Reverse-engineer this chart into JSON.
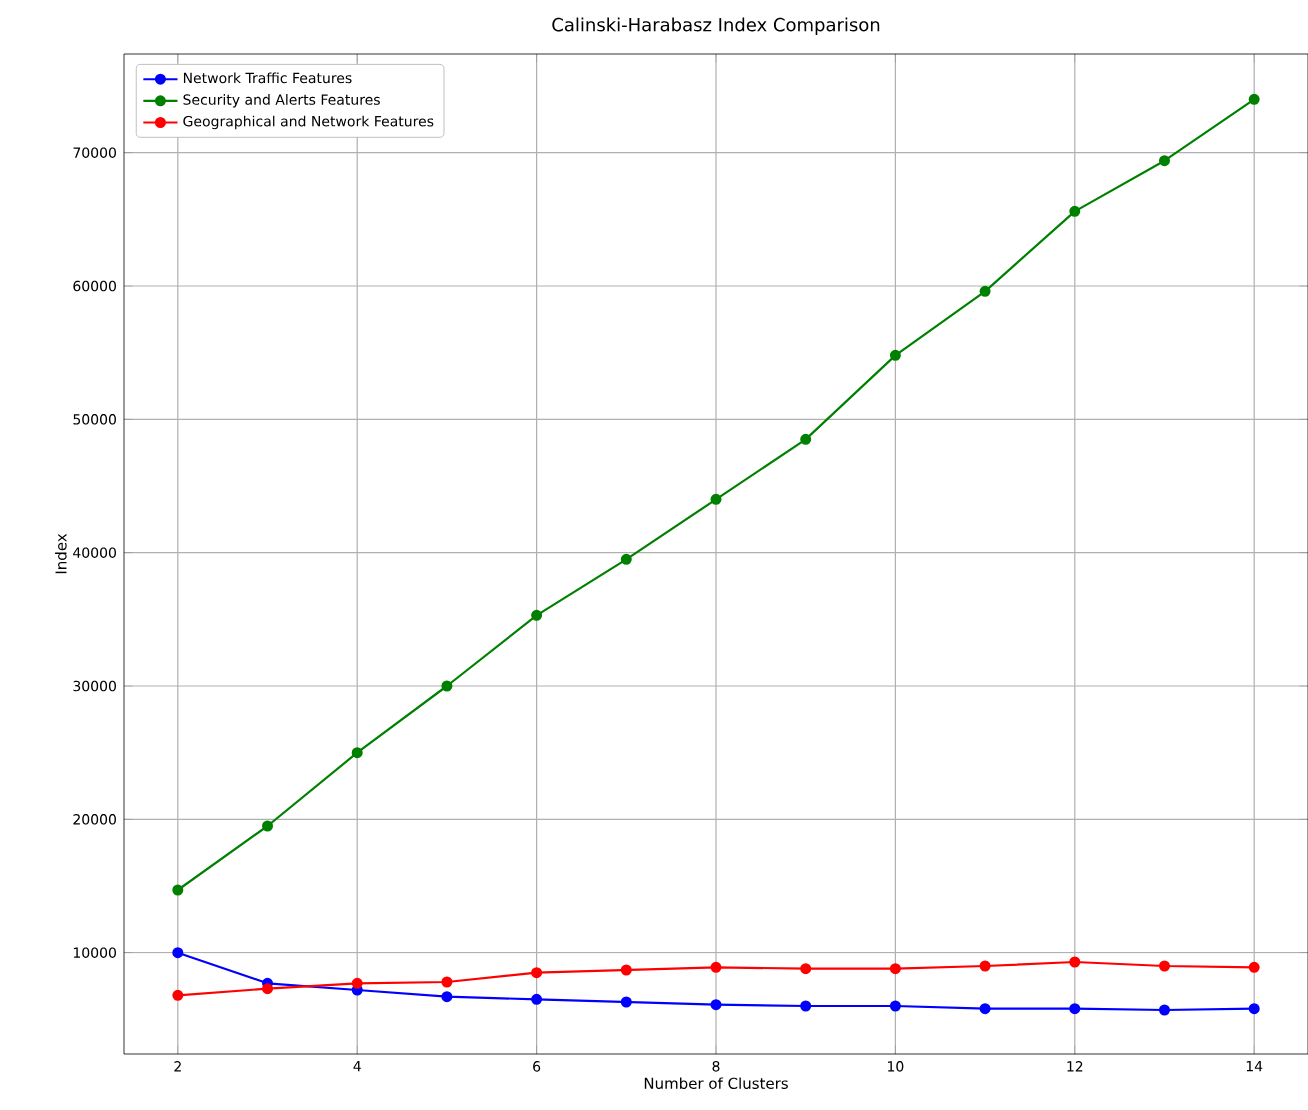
{
  "chart_data": {
    "type": "line",
    "title": "Calinski-Harabasz Index Comparison",
    "xlabel": "Number of Clusters",
    "ylabel": "Index",
    "x": [
      2,
      3,
      4,
      5,
      6,
      7,
      8,
      9,
      10,
      11,
      12,
      13,
      14
    ],
    "series": [
      {
        "name": "Network Traffic Features",
        "color": "#0000ff",
        "values": [
          10000,
          7700,
          7200,
          6700,
          6500,
          6300,
          6100,
          6000,
          6000,
          5800,
          5800,
          5700,
          5800
        ]
      },
      {
        "name": "Security and Alerts Features",
        "color": "#008000",
        "values": [
          14700,
          19500,
          25000,
          30000,
          35300,
          39500,
          44000,
          48500,
          54800,
          59600,
          65600,
          69400,
          74000
        ]
      },
      {
        "name": "Geographical and Network Features",
        "color": "#ff0000",
        "values": [
          6800,
          7300,
          7700,
          7800,
          8500,
          8700,
          8900,
          8800,
          8800,
          9000,
          9300,
          9000,
          8900
        ]
      }
    ],
    "xlim": [
      1.4,
      14.6
    ],
    "ylim": [
      2400,
      77400
    ],
    "xticks": [
      2,
      4,
      6,
      8,
      10,
      12,
      14
    ],
    "yticks": [
      10000,
      20000,
      30000,
      40000,
      50000,
      60000,
      70000
    ],
    "grid": true,
    "legend": "top left",
    "marker": "circle",
    "line_style": "solid"
  }
}
